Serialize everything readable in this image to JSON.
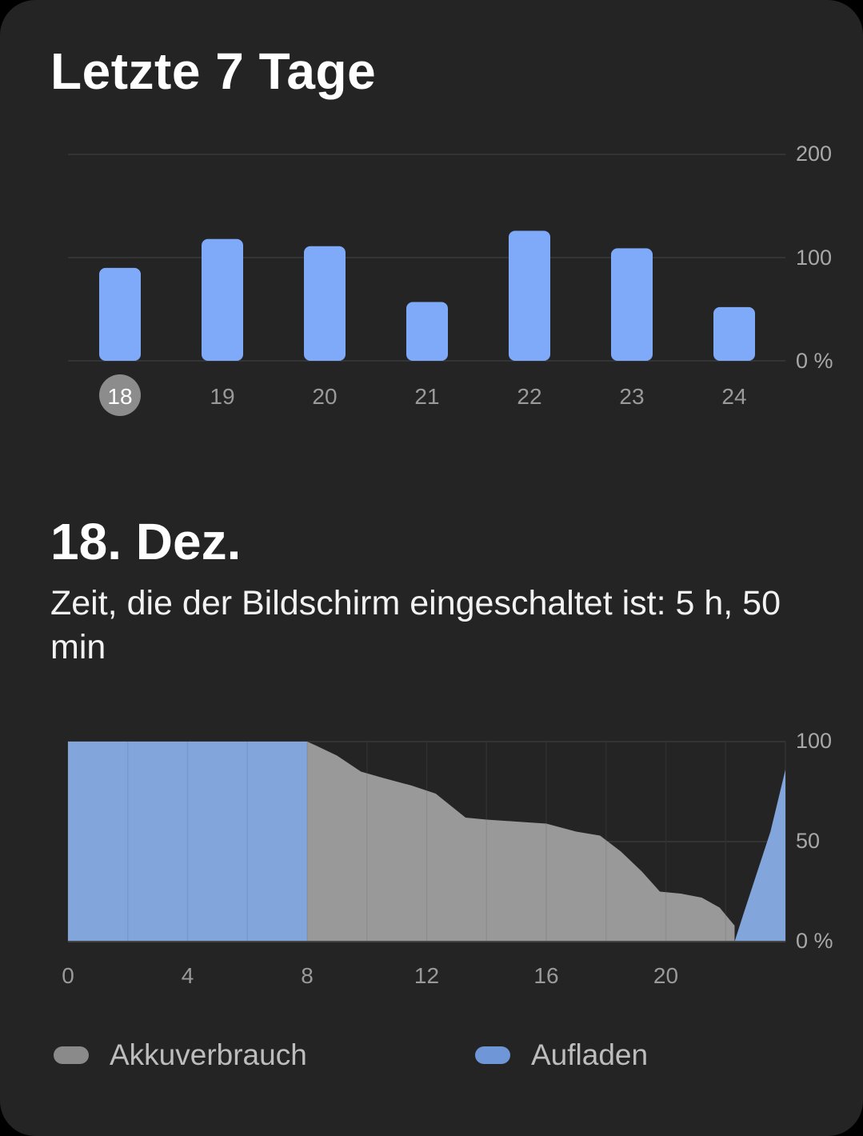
{
  "weekly": {
    "title": "Letzte 7 Tage",
    "y_ticks": [
      "200",
      "100",
      "0 %"
    ],
    "selected_day": "18"
  },
  "daily": {
    "title": "18. Dez.",
    "screen_time": "Zeit, die der Bildschirm eingeschaltet ist: 5 h, 50 min",
    "y_ticks": [
      "100",
      "50",
      "0 %"
    ],
    "x_ticks": [
      "0",
      "4",
      "8",
      "12",
      "16",
      "20"
    ]
  },
  "legend": {
    "usage": "Akkuverbrauch",
    "charging": "Aufladen"
  },
  "colors": {
    "background": "#242424",
    "bar": "#7eaaf9",
    "charging_area": "#82a5dc",
    "usage_area": "#999999",
    "selected_badge": "#8c8c8c",
    "legend_usage": "#8a8a8a",
    "legend_charging": "#6f96d7"
  },
  "chart_data": [
    {
      "type": "bar",
      "title": "Letzte 7 Tage",
      "categories": [
        "18",
        "19",
        "20",
        "21",
        "22",
        "23",
        "24"
      ],
      "values": [
        90,
        118,
        111,
        57,
        126,
        109,
        52
      ],
      "ylim": [
        0,
        200
      ],
      "y_ticks": [
        "200",
        "100",
        "0 %"
      ],
      "grid": true,
      "selected_category": "18"
    },
    {
      "type": "area",
      "title": "18. Dez.",
      "xlim": [
        0,
        24
      ],
      "ylim": [
        0,
        100
      ],
      "x_ticks": [
        "0",
        "4",
        "8",
        "12",
        "16",
        "20"
      ],
      "y_ticks": [
        "100",
        "50",
        "0 %"
      ],
      "grid": true,
      "series": [
        {
          "name": "Aufladen",
          "x": [
            0,
            8,
            8
          ],
          "y": [
            100,
            100,
            0
          ]
        },
        {
          "name": "Akkuverbrauch",
          "x": [
            8,
            8.3,
            9,
            9.8,
            10.5,
            11.5,
            12.3,
            13.3,
            14,
            15,
            16,
            17,
            17.8,
            18.5,
            19.2,
            19.8,
            20.5,
            21.2,
            21.8,
            22.3
          ],
          "y": [
            100,
            98,
            93,
            85,
            82,
            78,
            74,
            62,
            61,
            60,
            59,
            55,
            53,
            45,
            35,
            25,
            24,
            22,
            17,
            8
          ]
        },
        {
          "name": "Aufladen",
          "x": [
            22.3,
            22.6,
            23.5,
            24
          ],
          "y": [
            0,
            14,
            55,
            86
          ]
        }
      ]
    }
  ]
}
